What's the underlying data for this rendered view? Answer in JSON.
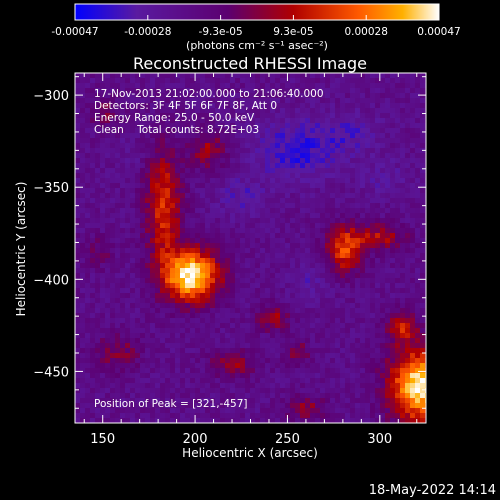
{
  "chart_data": {
    "type": "heatmap",
    "title": "Reconstructed RHESSI Image",
    "xlabel": "Heliocentric X (arcsec)",
    "ylabel": "Heliocentric Y (arcsec)",
    "xlim": [
      135,
      325
    ],
    "ylim": [
      -478,
      -288
    ],
    "xticks": [
      150,
      200,
      250,
      300
    ],
    "yticks": [
      -300,
      -350,
      -400,
      -450
    ],
    "colorbar": {
      "range": [
        -0.00047,
        0.00047
      ],
      "tick_labels": [
        "-0.00047",
        "-0.00028",
        "-9.3e-05",
        "9.3e-05",
        "0.00028",
        "0.00047"
      ],
      "units_label": "(photons cm⁻² s⁻¹ asec⁻²)",
      "colors": [
        "#0000ff",
        "#5a1aa0",
        "#5c0070",
        "#b00000",
        "#ff5a00",
        "#ffb000",
        "#ffffff"
      ]
    },
    "annotations": {
      "time": "17-Nov-2013 21:02:00.000 to 21:06:40.000",
      "detectors": "Detectors: 3F 4F 5F 6F 7F 8F, Att 0",
      "energy": "Energy Range: 25.0 - 50.0 keV",
      "method": "Clean    Total counts: 8.72E+03",
      "peak": "Position of Peak = [321,-457]"
    },
    "sources": [
      {
        "x": 198,
        "y": -398,
        "sx": 11,
        "sy": 10,
        "amp": 1.0
      },
      {
        "x": 183,
        "y": -360,
        "sx": 7,
        "sy": 22,
        "amp": 0.55
      },
      {
        "x": 207,
        "y": -330,
        "sx": 7,
        "sy": 7,
        "amp": 0.38
      },
      {
        "x": 322,
        "y": -458,
        "sx": 12,
        "sy": 14,
        "amp": 1.0
      },
      {
        "x": 281,
        "y": -384,
        "sx": 7,
        "sy": 9,
        "amp": 0.6
      },
      {
        "x": 300,
        "y": -377,
        "sx": 10,
        "sy": 5,
        "amp": 0.42
      },
      {
        "x": 312,
        "y": -426,
        "sx": 6,
        "sy": 6,
        "amp": 0.45
      },
      {
        "x": 242,
        "y": -421,
        "sx": 6,
        "sy": 5,
        "amp": 0.38
      },
      {
        "x": 158,
        "y": -440,
        "sx": 9,
        "sy": 7,
        "amp": 0.3
      },
      {
        "x": 221,
        "y": -446,
        "sx": 9,
        "sy": 5,
        "amp": 0.35
      },
      {
        "x": 260,
        "y": -470,
        "sx": 8,
        "sy": 5,
        "amp": 0.3
      },
      {
        "x": 151,
        "y": -310,
        "sx": 6,
        "sy": 6,
        "amp": 0.25
      },
      {
        "x": 148,
        "y": -385,
        "sx": 6,
        "sy": 6,
        "amp": 0.2
      },
      {
        "x": 255,
        "y": -440,
        "sx": 5,
        "sy": 5,
        "amp": 0.3
      }
    ],
    "holes": [
      {
        "x": 255,
        "y": -330,
        "sx": 16,
        "sy": 12,
        "amp": 0.6
      },
      {
        "x": 225,
        "y": -355,
        "sx": 10,
        "sy": 8,
        "amp": 0.35
      },
      {
        "x": 285,
        "y": -320,
        "sx": 12,
        "sy": 8,
        "amp": 0.35
      },
      {
        "x": 302,
        "y": -345,
        "sx": 10,
        "sy": 8,
        "amp": 0.3
      },
      {
        "x": 165,
        "y": -332,
        "sx": 6,
        "sy": 6,
        "amp": 0.2
      },
      {
        "x": 262,
        "y": -402,
        "sx": 8,
        "sy": 8,
        "amp": 0.3
      }
    ]
  },
  "footer": {
    "date": "18-May-2022 14:14"
  }
}
